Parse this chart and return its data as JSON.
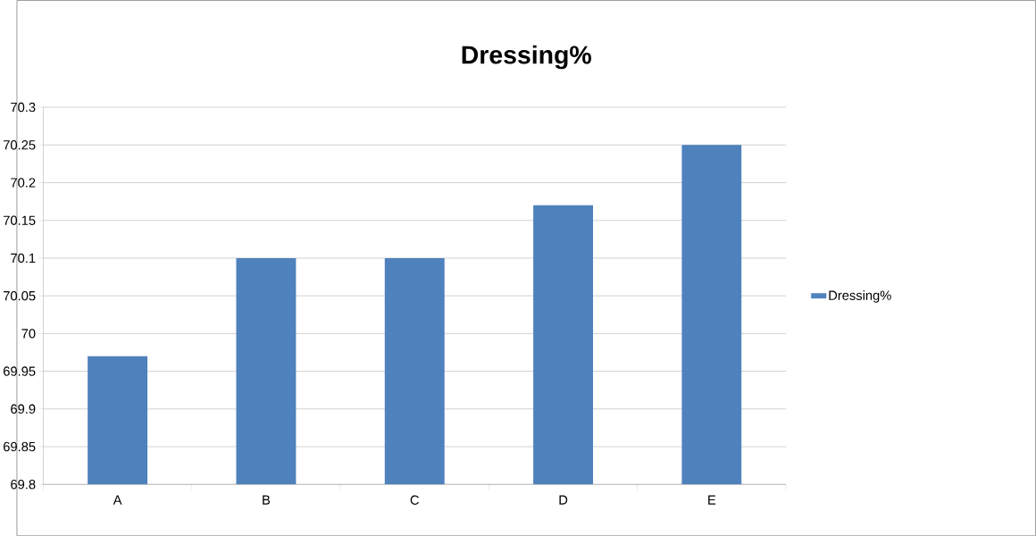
{
  "chart_data": {
    "type": "bar",
    "title": "Dressing%",
    "categories": [
      "A",
      "B",
      "C",
      "D",
      "E"
    ],
    "series": [
      {
        "name": "Dressing%",
        "color": "#4f81bd",
        "values": [
          69.97,
          70.1,
          70.1,
          70.17,
          70.25
        ]
      }
    ],
    "ylim": [
      69.8,
      70.3
    ],
    "yticks": [
      69.8,
      69.85,
      69.9,
      69.95,
      70,
      70.05,
      70.1,
      70.15,
      70.2,
      70.25,
      70.3
    ],
    "grid": "y",
    "legend": "right"
  }
}
